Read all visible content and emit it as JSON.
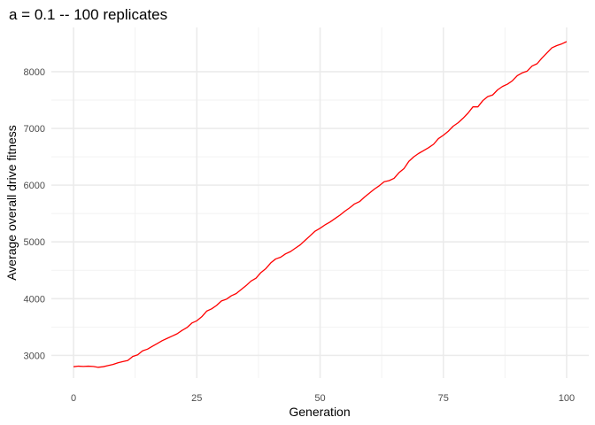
{
  "chart_data": {
    "type": "line",
    "title": "a = 0.1  -- 100 replicates",
    "xlabel": "Generation",
    "ylabel": "Average overall drive fitness",
    "xlim": [
      -4.5,
      104.5
    ],
    "ylim": [
      2600,
      8780
    ],
    "x_ticks": [
      0,
      25,
      50,
      75,
      100
    ],
    "y_ticks": [
      3000,
      4000,
      5000,
      6000,
      7000,
      8000
    ],
    "x_tick_labels": [
      "0",
      "25",
      "50",
      "75",
      "100"
    ],
    "y_tick_labels": [
      "3000",
      "4000",
      "5000",
      "6000",
      "7000",
      "8000"
    ],
    "grid": true,
    "legend": "none",
    "line_color": "#ff0000",
    "series": [
      {
        "x": [
          0,
          1,
          2,
          3,
          4,
          5,
          6,
          7,
          8,
          9,
          10,
          11,
          12,
          13,
          14,
          15,
          16,
          17,
          18,
          19,
          20,
          21,
          22,
          23,
          24,
          25,
          26,
          27,
          28,
          29,
          30,
          31,
          32,
          33,
          34,
          35,
          36,
          37,
          38,
          39,
          40,
          41,
          42,
          43,
          44,
          45,
          46,
          47,
          48,
          49,
          50,
          51,
          52,
          53,
          54,
          55,
          56,
          57,
          58,
          59,
          60,
          61,
          62,
          63,
          64,
          65,
          66,
          67,
          68,
          69,
          70,
          71,
          72,
          73,
          74,
          75,
          76,
          77,
          78,
          79,
          80,
          81,
          82,
          83,
          84,
          85,
          86,
          87,
          88,
          89,
          90,
          91,
          92,
          93,
          94,
          95,
          96,
          97,
          98,
          99,
          100
        ],
        "values": [
          2800,
          2810,
          2805,
          2810,
          2805,
          2790,
          2800,
          2820,
          2840,
          2870,
          2890,
          2910,
          2980,
          3010,
          3080,
          3110,
          3160,
          3210,
          3260,
          3300,
          3340,
          3380,
          3440,
          3490,
          3570,
          3610,
          3680,
          3780,
          3820,
          3880,
          3960,
          3990,
          4050,
          4090,
          4160,
          4230,
          4310,
          4360,
          4460,
          4530,
          4630,
          4700,
          4730,
          4790,
          4830,
          4890,
          4950,
          5030,
          5110,
          5190,
          5240,
          5300,
          5350,
          5410,
          5470,
          5540,
          5600,
          5670,
          5710,
          5790,
          5860,
          5930,
          5990,
          6060,
          6080,
          6120,
          6220,
          6290,
          6420,
          6500,
          6560,
          6610,
          6660,
          6720,
          6820,
          6880,
          6950,
          7040,
          7100,
          7180,
          7270,
          7380,
          7380,
          7490,
          7560,
          7590,
          7680,
          7740,
          7780,
          7840,
          7930,
          7980,
          8010,
          8100,
          8140,
          8240,
          8330,
          8420,
          8460,
          8490,
          8530
        ]
      }
    ]
  }
}
